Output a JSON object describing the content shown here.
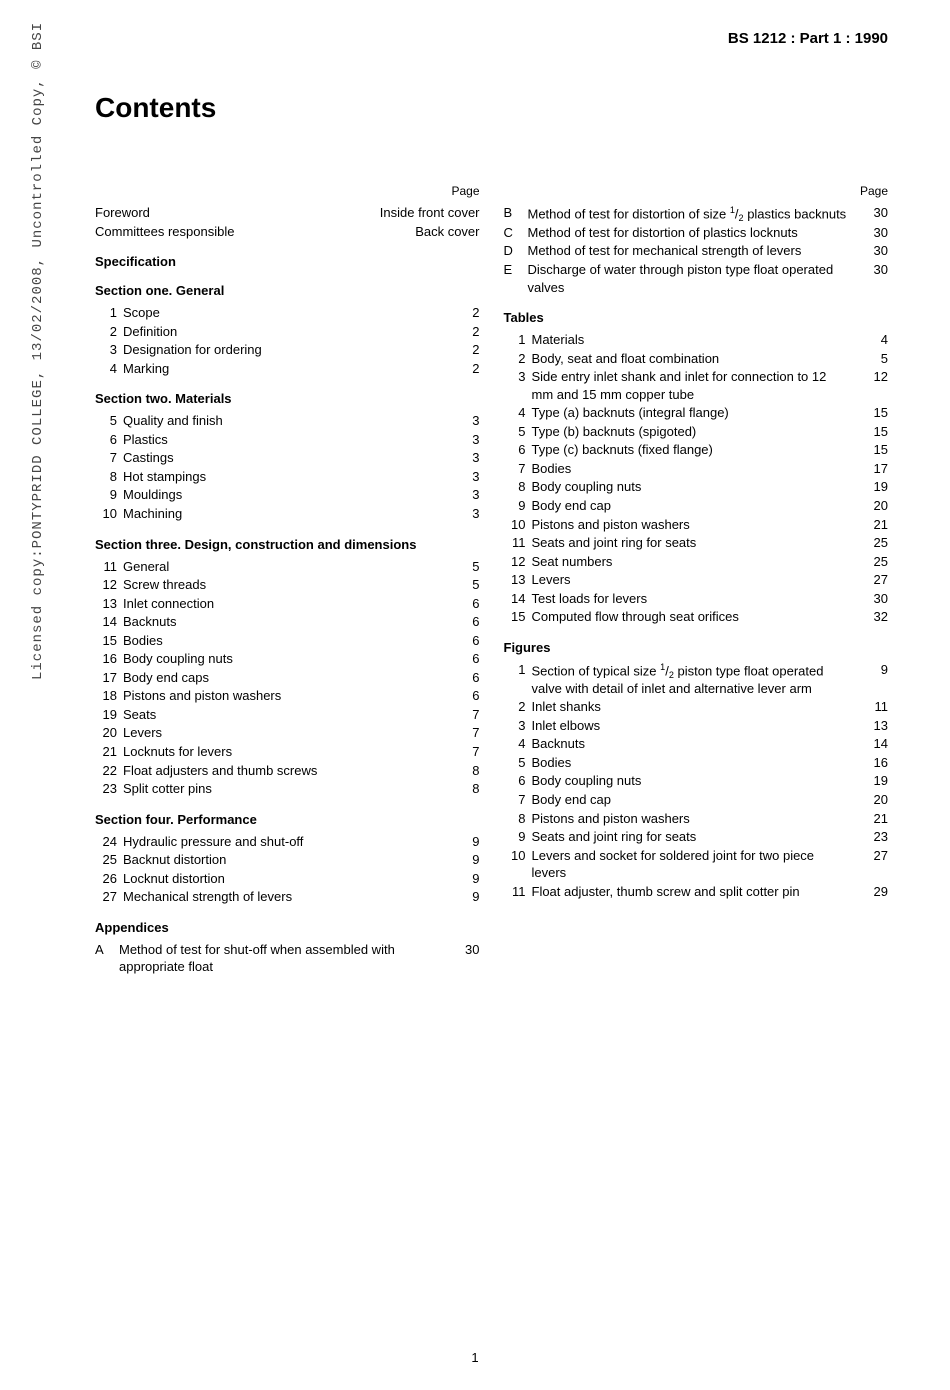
{
  "doc_id": "BS 1212 : Part 1 : 1990",
  "title": "Contents",
  "sideways_text": "Licensed copy:PONTYPRIDD COLLEGE, 13/02/2008, Uncontrolled Copy, © BSI",
  "page_label": "Page",
  "page_number": "1",
  "left": {
    "prelim": [
      {
        "label": "Foreword",
        "pg": "Inside front cover"
      },
      {
        "label": "Committees responsible",
        "pg": "Back cover"
      }
    ],
    "sections": [
      {
        "heading": "Specification",
        "sub": "Section one. General",
        "items": [
          {
            "n": "1",
            "label": "Scope",
            "pg": "2"
          },
          {
            "n": "2",
            "label": "Definition",
            "pg": "2"
          },
          {
            "n": "3",
            "label": "Designation for ordering",
            "pg": "2"
          },
          {
            "n": "4",
            "label": "Marking",
            "pg": "2"
          }
        ]
      },
      {
        "sub": "Section two. Materials",
        "items": [
          {
            "n": "5",
            "label": "Quality and finish",
            "pg": "3"
          },
          {
            "n": "6",
            "label": "Plastics",
            "pg": "3"
          },
          {
            "n": "7",
            "label": "Castings",
            "pg": "3"
          },
          {
            "n": "8",
            "label": "Hot stampings",
            "pg": "3"
          },
          {
            "n": "9",
            "label": "Mouldings",
            "pg": "3"
          },
          {
            "n": "10",
            "label": "Machining",
            "pg": "3"
          }
        ]
      },
      {
        "sub": "Section three. Design, construction and dimensions",
        "items": [
          {
            "n": "11",
            "label": "General",
            "pg": "5"
          },
          {
            "n": "12",
            "label": "Screw threads",
            "pg": "5"
          },
          {
            "n": "13",
            "label": "Inlet connection",
            "pg": "6"
          },
          {
            "n": "14",
            "label": "Backnuts",
            "pg": "6"
          },
          {
            "n": "15",
            "label": "Bodies",
            "pg": "6"
          },
          {
            "n": "16",
            "label": "Body coupling nuts",
            "pg": "6"
          },
          {
            "n": "17",
            "label": "Body end caps",
            "pg": "6"
          },
          {
            "n": "18",
            "label": "Pistons and piston washers",
            "pg": "6"
          },
          {
            "n": "19",
            "label": "Seats",
            "pg": "7"
          },
          {
            "n": "20",
            "label": "Levers",
            "pg": "7"
          },
          {
            "n": "21",
            "label": "Locknuts for levers",
            "pg": "7"
          },
          {
            "n": "22",
            "label": "Float adjusters and thumb screws",
            "pg": "8"
          },
          {
            "n": "23",
            "label": "Split cotter pins",
            "pg": "8"
          }
        ]
      },
      {
        "sub": "Section four. Performance",
        "items": [
          {
            "n": "24",
            "label": "Hydraulic pressure and shut-off",
            "pg": "9"
          },
          {
            "n": "25",
            "label": "Backnut distortion",
            "pg": "9"
          },
          {
            "n": "26",
            "label": "Locknut distortion",
            "pg": "9"
          },
          {
            "n": "27",
            "label": "Mechanical strength of levers",
            "pg": "9"
          }
        ]
      },
      {
        "sub": "Appendices",
        "lettered": true,
        "items": [
          {
            "n": "A",
            "label": "Method of test for shut-off when assembled with appropriate float",
            "pg": "30"
          }
        ]
      }
    ]
  },
  "right": {
    "cont": [
      {
        "n": "B",
        "label_html": "Method of test for distortion of size <sup>1</sup>/<sub>2</sub> plastics backnuts",
        "pg": "30"
      },
      {
        "n": "C",
        "label": "Method of test for distortion of plastics locknuts",
        "pg": "30"
      },
      {
        "n": "D",
        "label": "Method of test for mechanical strength of levers",
        "pg": "30"
      },
      {
        "n": "E",
        "label": "Discharge of water through piston type float operated valves",
        "pg": "30"
      }
    ],
    "tables_heading": "Tables",
    "tables": [
      {
        "n": "1",
        "label": "Materials",
        "pg": "4"
      },
      {
        "n": "2",
        "label": "Body, seat and float combination",
        "pg": "5"
      },
      {
        "n": "3",
        "label": "Side entry inlet shank and inlet for connection to 12 mm and 15 mm copper tube",
        "pg": "12"
      },
      {
        "n": "4",
        "label": "Type (a) backnuts (integral flange)",
        "pg": "15"
      },
      {
        "n": "5",
        "label": "Type (b) backnuts (spigoted)",
        "pg": "15"
      },
      {
        "n": "6",
        "label": "Type (c) backnuts (fixed flange)",
        "pg": "15"
      },
      {
        "n": "7",
        "label": "Bodies",
        "pg": "17"
      },
      {
        "n": "8",
        "label": "Body coupling nuts",
        "pg": "19"
      },
      {
        "n": "9",
        "label": "Body end cap",
        "pg": "20"
      },
      {
        "n": "10",
        "label": "Pistons and piston washers",
        "pg": "21"
      },
      {
        "n": "11",
        "label": "Seats and joint ring for seats",
        "pg": "25"
      },
      {
        "n": "12",
        "label": "Seat numbers",
        "pg": "25"
      },
      {
        "n": "13",
        "label": "Levers",
        "pg": "27"
      },
      {
        "n": "14",
        "label": "Test loads for levers",
        "pg": "30"
      },
      {
        "n": "15",
        "label": "Computed flow through seat orifices",
        "pg": "32"
      }
    ],
    "figures_heading": "Figures",
    "figures": [
      {
        "n": "1",
        "label_html": "Section of typical size <sup>1</sup>/<sub>2</sub> piston type float operated valve with detail of inlet and alternative lever arm",
        "pg": "9"
      },
      {
        "n": "2",
        "label": "Inlet shanks",
        "pg": "11"
      },
      {
        "n": "3",
        "label": "Inlet elbows",
        "pg": "13"
      },
      {
        "n": "4",
        "label": "Backnuts",
        "pg": "14"
      },
      {
        "n": "5",
        "label": "Bodies",
        "pg": "16"
      },
      {
        "n": "6",
        "label": "Body coupling nuts",
        "pg": "19"
      },
      {
        "n": "7",
        "label": "Body end cap",
        "pg": "20"
      },
      {
        "n": "8",
        "label": "Pistons and piston washers",
        "pg": "21"
      },
      {
        "n": "9",
        "label": "Seats and joint ring for seats",
        "pg": "23"
      },
      {
        "n": "10",
        "label": "Levers and socket for soldered joint for two piece levers",
        "pg": "27"
      },
      {
        "n": "11",
        "label": "Float adjuster, thumb screw and split cotter pin",
        "pg": "29"
      }
    ]
  }
}
